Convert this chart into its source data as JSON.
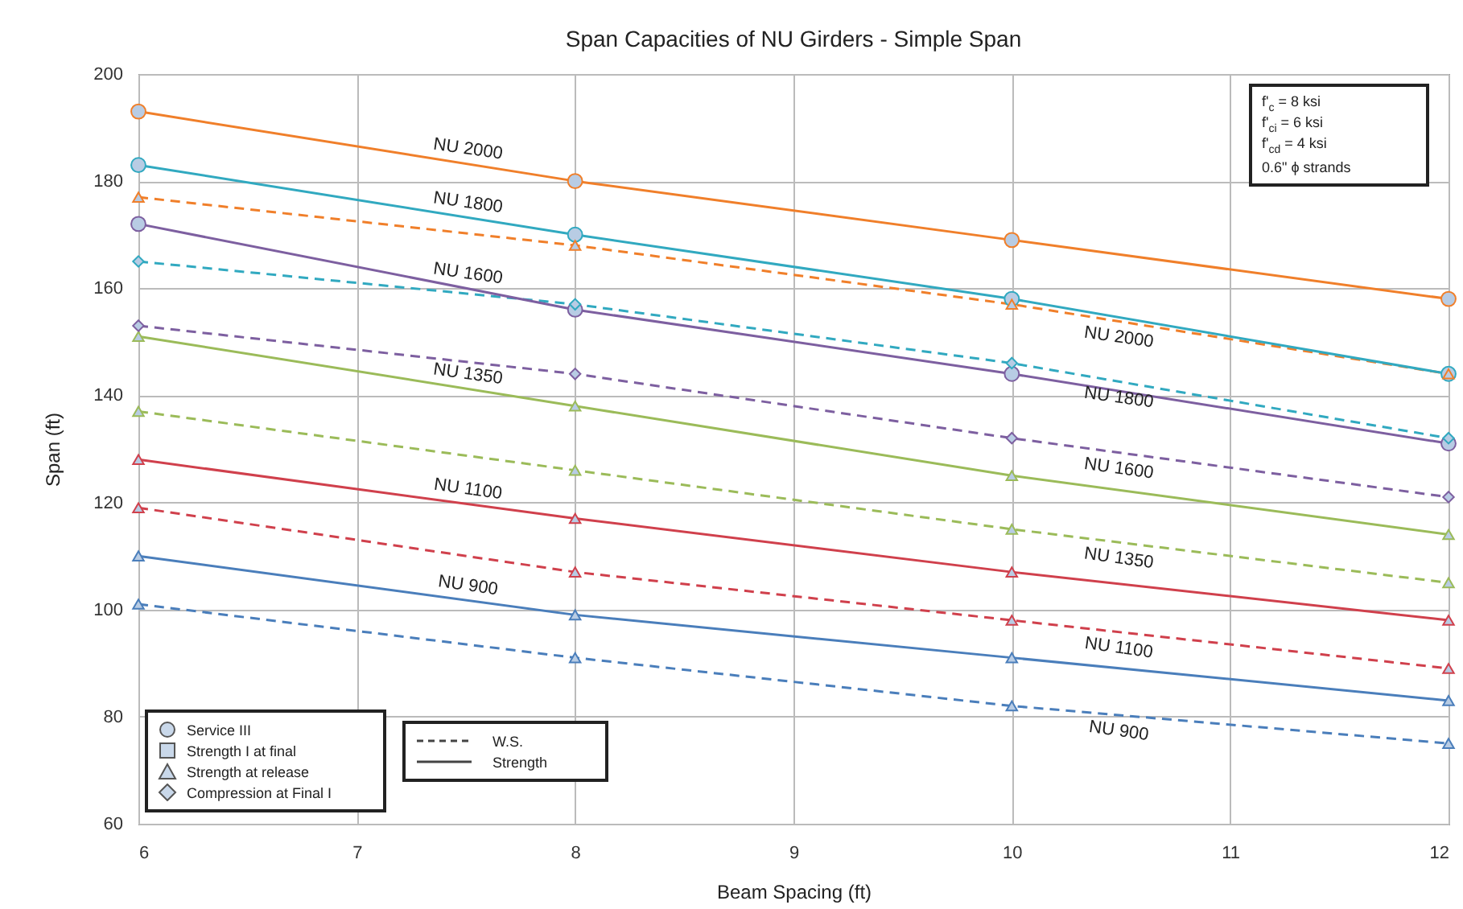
{
  "chart_data": {
    "type": "line",
    "title": "Span Capacities of NU Girders - Simple Span",
    "xlabel": "Beam Spacing (ft)",
    "ylabel": "Span (ft)",
    "x": [
      6,
      8,
      10,
      12
    ],
    "xlim": [
      6,
      12
    ],
    "xticks": [
      6,
      7,
      8,
      9,
      10,
      11,
      12
    ],
    "ylim": [
      60,
      200
    ],
    "yticks": [
      60,
      80,
      100,
      120,
      140,
      160,
      180,
      200
    ],
    "grid": true,
    "series": [
      {
        "name": "NU 2000",
        "color": "#f07f2a",
        "values": [
          193,
          180,
          169,
          158
        ],
        "line_style": "solid",
        "marker": "circle"
      },
      {
        "name": "NU 2000",
        "color": "#f07f2a",
        "values": [
          177,
          168,
          157,
          144
        ],
        "line_style": "dashed",
        "marker": "triangle"
      },
      {
        "name": "NU 1800",
        "color": "#31a9c0",
        "values": [
          183,
          170,
          158,
          144
        ],
        "line_style": "solid",
        "marker": "circle"
      },
      {
        "name": "NU 1800",
        "color": "#31a9c0",
        "values": [
          165,
          157,
          146,
          132
        ],
        "line_style": "dashed",
        "marker": "diamond"
      },
      {
        "name": "NU 1600",
        "color": "#7d5fa0",
        "values": [
          172,
          156,
          144,
          131
        ],
        "line_style": "solid",
        "marker": "circle"
      },
      {
        "name": "NU 1600",
        "color": "#7d5fa0",
        "values": [
          153,
          144,
          132,
          121
        ],
        "line_style": "dashed",
        "marker": "diamond"
      },
      {
        "name": "NU 1350",
        "color": "#9bbb59",
        "values": [
          151,
          138,
          125,
          114
        ],
        "line_style": "solid",
        "marker": "triangle"
      },
      {
        "name": "NU 1350",
        "color": "#9bbb59",
        "values": [
          137,
          126,
          115,
          105
        ],
        "line_style": "dashed",
        "marker": "triangle"
      },
      {
        "name": "NU 1100",
        "color": "#d0404c",
        "values": [
          128,
          117,
          107,
          98
        ],
        "line_style": "solid",
        "marker": "triangle"
      },
      {
        "name": "NU 1100",
        "color": "#d0404c",
        "values": [
          119,
          107,
          98,
          89
        ],
        "line_style": "dashed",
        "marker": "triangle"
      },
      {
        "name": "NU 900",
        "color": "#4a7ebb",
        "values": [
          110,
          99,
          91,
          83
        ],
        "line_style": "solid",
        "marker": "triangle"
      },
      {
        "name": "NU 900",
        "color": "#4a7ebb",
        "values": [
          101,
          91,
          82,
          75
        ],
        "line_style": "dashed",
        "marker": "triangle"
      }
    ],
    "annotations": [
      "f'$_{c}$ = 8 ksi",
      "f'$_{ci}$ = 6 ksi",
      "f'$_{cd}$ = 4 ksi",
      "0.6\" ϕ strands",
      "Service III",
      "Strength I at final",
      "Strength at release",
      "Compression at Final I",
      "W.S.",
      "Strength"
    ]
  }
}
